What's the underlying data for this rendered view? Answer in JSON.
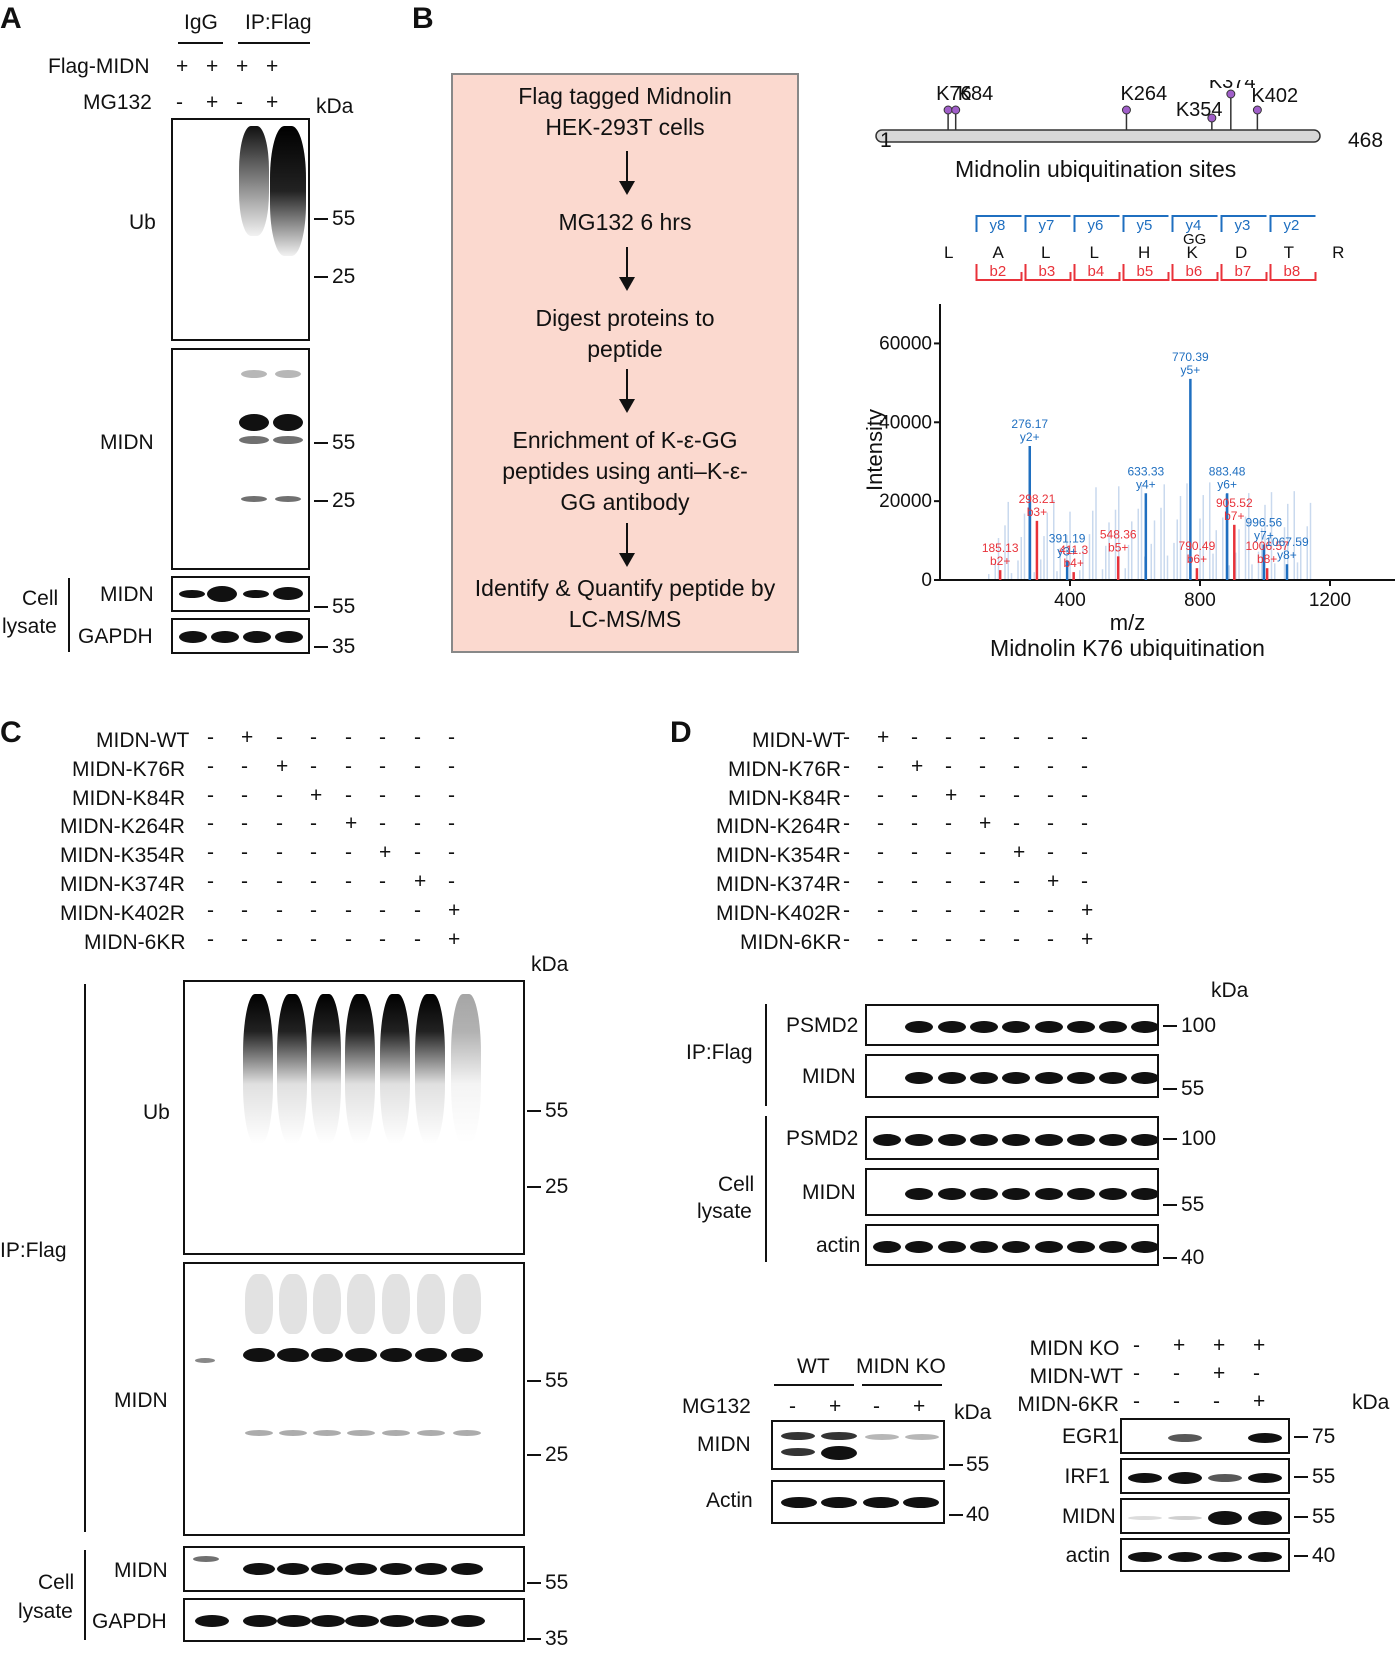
{
  "panelA": {
    "letter": "A",
    "group_labels": [
      "IgG",
      "IP:Flag"
    ],
    "row_labels": [
      "Flag-MIDN",
      "MG132"
    ],
    "signs": [
      [
        "+",
        "+",
        "+",
        "+"
      ],
      [
        "-",
        "+",
        "-",
        "+"
      ]
    ],
    "kda": "kDa",
    "blot_labels": [
      "Ub",
      "MIDN",
      "MIDN",
      "GAPDH"
    ],
    "section_label": [
      "Cell",
      "lysate"
    ],
    "markers": {
      "ub": [
        "55",
        "25"
      ],
      "midn": [
        "55",
        "25"
      ],
      "lysate_midn": "55",
      "lysate_gapdh": "35"
    }
  },
  "panelB": {
    "letter": "B",
    "flow_steps": [
      "Flag tagged Midnolin HEK-293T cells",
      "MG132 6 hrs",
      "Digest proteins to peptide",
      "Enrichment of K-ε-GG peptides using anti–K-ε-GG antibody",
      "Identify & Quantify peptide by LC-MS/MS"
    ],
    "domain_map": {
      "start": "1",
      "end": "468",
      "length": 468,
      "caption": "Midnolin ubiquitination sites",
      "sites": [
        {
          "label": "K76",
          "pos": 76
        },
        {
          "label": "K84",
          "pos": 84
        },
        {
          "label": "K264",
          "pos": 264
        },
        {
          "label": "K354",
          "pos": 354
        },
        {
          "label": "K374",
          "pos": 374
        },
        {
          "label": "K402",
          "pos": 402
        }
      ]
    },
    "peptide": {
      "residues": [
        "L",
        "A",
        "L",
        "L",
        "H",
        "K",
        "D",
        "T",
        "R"
      ],
      "mod_label": "GG",
      "y_ions": [
        "y8",
        "y7",
        "y6",
        "y5",
        "y4",
        "y3",
        "y2"
      ],
      "b_ions": [
        "b2",
        "b3",
        "b4",
        "b5",
        "b6",
        "b7",
        "b8"
      ]
    },
    "spectrum": {
      "type": "bar",
      "xlabel": "m/z",
      "ylabel": "Intensity",
      "title": "Midnolin K76 ubiquitination",
      "xticks": [
        "400",
        "800",
        "1200"
      ],
      "yticks": [
        "0",
        "20000",
        "40000",
        "60000"
      ],
      "xlim": [
        0,
        1400
      ],
      "ylim": [
        0,
        70000
      ],
      "peaks": [
        {
          "mz": 185.13,
          "intensity": 2500,
          "label": "185.13",
          "ion": "b2+",
          "series": "b"
        },
        {
          "mz": 276.17,
          "intensity": 34000,
          "label": "276.17",
          "ion": "y2+",
          "series": "y"
        },
        {
          "mz": 298.21,
          "intensity": 15000,
          "label": "298.21",
          "ion": "b3+",
          "series": "b"
        },
        {
          "mz": 391.19,
          "intensity": 5000,
          "label": "391.19",
          "ion": "y3+",
          "series": "y"
        },
        {
          "mz": 411.3,
          "intensity": 2000,
          "label": "411.3",
          "ion": "b4+",
          "series": "b"
        },
        {
          "mz": 548.36,
          "intensity": 6000,
          "label": "548.36",
          "ion": "b5+",
          "series": "b"
        },
        {
          "mz": 633.33,
          "intensity": 22000,
          "label": "633.33",
          "ion": "y4+",
          "series": "y"
        },
        {
          "mz": 770.39,
          "intensity": 51000,
          "label": "770.39",
          "ion": "y5+",
          "series": "y"
        },
        {
          "mz": 790.49,
          "intensity": 3000,
          "label": "790.49",
          "ion": "b6+",
          "series": "b"
        },
        {
          "mz": 883.48,
          "intensity": 22000,
          "label": "883.48",
          "ion": "y6+",
          "series": "y"
        },
        {
          "mz": 905.52,
          "intensity": 14000,
          "label": "905.52",
          "ion": "b7+",
          "series": "b"
        },
        {
          "mz": 996.56,
          "intensity": 9000,
          "label": "996.56",
          "ion": "y7+",
          "series": "y"
        },
        {
          "mz": 1006.57,
          "intensity": 3000,
          "label": "1006.57",
          "ion": "b8+",
          "series": "b"
        },
        {
          "mz": 1067.59,
          "intensity": 4000,
          "label": "1067.59",
          "ion": "y8+",
          "series": "y"
        }
      ],
      "colors": {
        "y": "#1f6fc0",
        "b": "#e8323a",
        "background": "#c9d9ee"
      }
    }
  },
  "panelC": {
    "letter": "C",
    "conditions": [
      "MIDN-WT",
      "MIDN-K76R",
      "MIDN-K84R",
      "MIDN-K264R",
      "MIDN-K354R",
      "MIDN-K374R",
      "MIDN-K402R",
      "MIDN-6KR"
    ],
    "signs": [
      [
        "-",
        "+",
        "-",
        "-",
        "-",
        "-",
        "-",
        "-"
      ],
      [
        "-",
        "-",
        "+",
        "-",
        "-",
        "-",
        "-",
        "-"
      ],
      [
        "-",
        "-",
        "-",
        "+",
        "-",
        "-",
        "-",
        "-"
      ],
      [
        "-",
        "-",
        "-",
        "-",
        "+",
        "-",
        "-",
        "-"
      ],
      [
        "-",
        "-",
        "-",
        "-",
        "-",
        "+",
        "-",
        "-"
      ],
      [
        "-",
        "-",
        "-",
        "-",
        "-",
        "-",
        "+",
        "-"
      ],
      [
        "-",
        "-",
        "-",
        "-",
        "-",
        "-",
        "-",
        "+"
      ],
      [
        "-",
        "-",
        "-",
        "-",
        "-",
        "-",
        "-",
        "+"
      ]
    ],
    "kda": "kDa",
    "blot_labels": [
      "Ub",
      "MIDN",
      "MIDN",
      "GAPDH"
    ],
    "ip_label": "IP:Flag",
    "lysate_label": [
      "Cell",
      "lysate"
    ],
    "markers": {
      "ub": [
        "55",
        "25"
      ],
      "midn": [
        "55",
        "25"
      ],
      "lysate_midn": "55",
      "lysate_gapdh": "35"
    }
  },
  "panelD": {
    "letter": "D",
    "conditions": [
      "MIDN-WT",
      "MIDN-K76R",
      "MIDN-K84R",
      "MIDN-K264R",
      "MIDN-K354R",
      "MIDN-K374R",
      "MIDN-K402R",
      "MIDN-6KR"
    ],
    "signs": [
      [
        "-",
        "+",
        "-",
        "-",
        "-",
        "-",
        "-",
        "-"
      ],
      [
        "-",
        "-",
        "+",
        "-",
        "-",
        "-",
        "-",
        "-"
      ],
      [
        "-",
        "-",
        "-",
        "+",
        "-",
        "-",
        "-",
        "-"
      ],
      [
        "-",
        "-",
        "-",
        "-",
        "+",
        "-",
        "-",
        "-"
      ],
      [
        "-",
        "-",
        "-",
        "-",
        "-",
        "+",
        "-",
        "-"
      ],
      [
        "-",
        "-",
        "-",
        "-",
        "-",
        "-",
        "+",
        "-"
      ],
      [
        "-",
        "-",
        "-",
        "-",
        "-",
        "-",
        "-",
        "+"
      ],
      [
        "-",
        "-",
        "-",
        "-",
        "-",
        "-",
        "-",
        "+"
      ]
    ],
    "kda": "kDa",
    "blot_labels": [
      "PSMD2",
      "MIDN",
      "PSMD2",
      "MIDN",
      "actin"
    ],
    "ip_label": "IP:Flag",
    "lysate_label": [
      "Cell",
      "lysate"
    ],
    "markers": [
      "100",
      "55",
      "100",
      "55",
      "40"
    ]
  },
  "panelE": {
    "group_labels": [
      "WT",
      "MIDN KO"
    ],
    "row_label": "MG132",
    "signs": [
      "-",
      "+",
      "-",
      "+"
    ],
    "kda": "kDa",
    "blot_labels": [
      "MIDN",
      "Actin"
    ],
    "markers": [
      "55",
      "40"
    ]
  },
  "panelF": {
    "row_labels": [
      "MIDN KO",
      "MIDN-WT",
      "MIDN-6KR"
    ],
    "signs": [
      [
        "-",
        "+",
        "+",
        "+"
      ],
      [
        "-",
        "-",
        "+",
        "-"
      ],
      [
        "-",
        "-",
        "-",
        "+"
      ]
    ],
    "kda": "kDa",
    "blot_labels": [
      "EGR1",
      "IRF1",
      "MIDN",
      "actin"
    ],
    "markers": [
      "75",
      "55",
      "55",
      "40"
    ]
  }
}
